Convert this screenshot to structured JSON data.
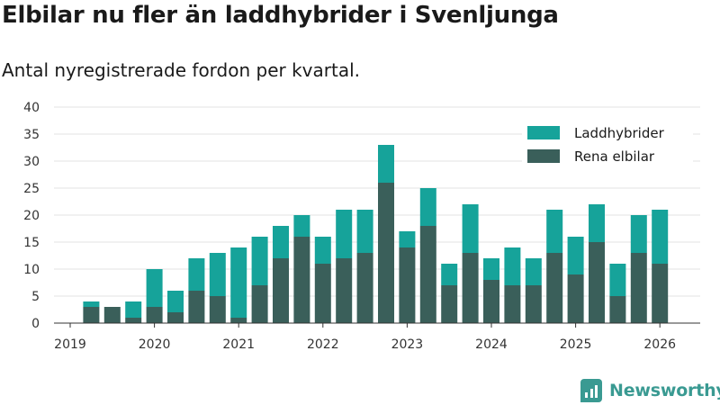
{
  "title": "Elbilar nu fler än laddhybrider i Svenljunga",
  "subtitle": "Antal nyregistrerade fordon per kvartal.",
  "brand": "Newsworthy",
  "chart_data": {
    "type": "bar",
    "stacked": true,
    "x": [
      "2019 Q2",
      "2019 Q3",
      "2019 Q4",
      "2020 Q1",
      "2020 Q2",
      "2020 Q3",
      "2020 Q4",
      "2021 Q1",
      "2021 Q2",
      "2021 Q3",
      "2021 Q4",
      "2022 Q1",
      "2022 Q2",
      "2022 Q3",
      "2022 Q4",
      "2023 Q1",
      "2023 Q2",
      "2023 Q3",
      "2023 Q4",
      "2024 Q1",
      "2024 Q2",
      "2024 Q3",
      "2024 Q4",
      "2025 Q1",
      "2025 Q2",
      "2025 Q3",
      "2025 Q4",
      "2026 Q1"
    ],
    "series": [
      {
        "name": "Rena elbilar",
        "color": "#3a5f5a",
        "values": [
          3,
          3,
          1,
          3,
          2,
          6,
          5,
          1,
          7,
          12,
          16,
          11,
          12,
          13,
          26,
          14,
          18,
          7,
          13,
          8,
          7,
          7,
          13,
          9,
          15,
          5,
          13,
          11
        ]
      },
      {
        "name": "Laddhybrider",
        "color": "#16a39a",
        "values": [
          1,
          0,
          3,
          7,
          4,
          6,
          8,
          13,
          9,
          6,
          4,
          5,
          9,
          8,
          7,
          3,
          7,
          4,
          9,
          4,
          7,
          5,
          8,
          7,
          7,
          6,
          7,
          10
        ]
      }
    ],
    "legend_order": [
      "Laddhybrider",
      "Rena elbilar"
    ],
    "x_ticks": [
      "2019",
      "2020",
      "2021",
      "2022",
      "2023",
      "2024",
      "2025",
      "2026"
    ],
    "y_ticks": [
      0,
      5,
      10,
      15,
      20,
      25,
      30,
      35,
      40
    ],
    "ylim": [
      0,
      40
    ],
    "grid": true,
    "legend_position": "top-right"
  }
}
